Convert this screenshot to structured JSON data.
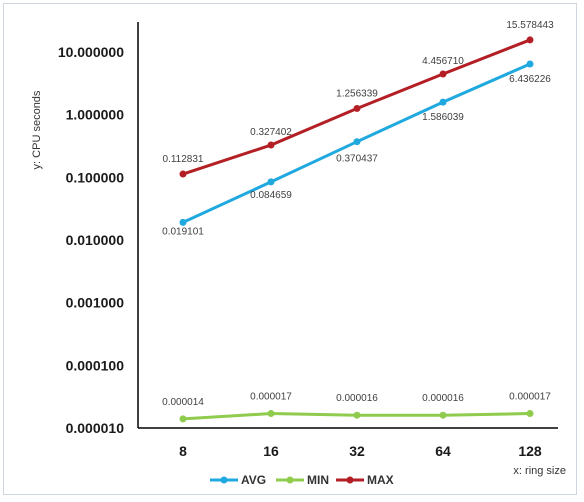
{
  "chart_data": {
    "type": "line",
    "x_scale": "log2",
    "y_scale": "log10",
    "categories": [
      "8",
      "16",
      "32",
      "64",
      "128"
    ],
    "x": [
      8,
      16,
      32,
      64,
      128
    ],
    "xlabel": "x: ring size",
    "ylabel": "y: CPU seconds",
    "y_ticks": [
      "10.000000",
      "1.000000",
      "0.100000",
      "0.010000",
      "0.001000",
      "0.000100",
      "0.000010"
    ],
    "y_tick_values": [
      10,
      1,
      0.1,
      0.01,
      0.001,
      0.0001,
      1e-05
    ],
    "ylim": [
      1e-05,
      10
    ],
    "grid": false,
    "legend_position": "bottom",
    "series": [
      {
        "name": "AVG",
        "color": "#1fa9df",
        "values": [
          0.019101,
          0.084659,
          0.370437,
          1.586039,
          6.436226
        ],
        "labels": [
          "0.019101",
          "0.084659",
          "0.370437",
          "1.586039",
          "6.436226"
        ]
      },
      {
        "name": "MIN",
        "color": "#8fcb4c",
        "values": [
          1.4e-05,
          1.7e-05,
          1.6e-05,
          1.6e-05,
          1.7e-05
        ],
        "labels": [
          "0.000014",
          "0.000017",
          "0.000016",
          "0.000016",
          "0.000017"
        ]
      },
      {
        "name": "MAX",
        "color": "#b31f24",
        "values": [
          0.112831,
          0.327402,
          1.256339,
          4.45671,
          15.578443
        ],
        "labels": [
          "0.112831",
          "0.327402",
          "1.256339",
          "4.456710",
          "15.578443"
        ]
      }
    ]
  }
}
